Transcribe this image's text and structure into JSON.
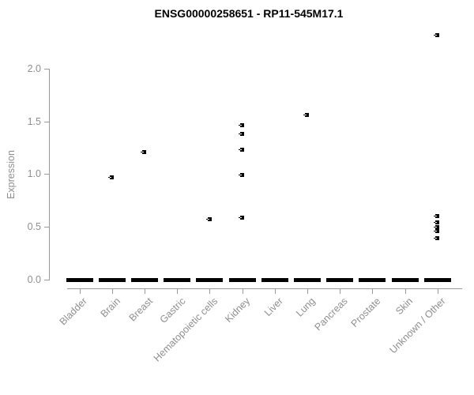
{
  "chart_data": {
    "type": "scatter",
    "title": "ENSG00000258651 - RP11-545M17.1",
    "ylabel": "Expression",
    "xlabel": "",
    "ylim": [
      0.0,
      2.35
    ],
    "yticks": [
      "0.0",
      "0.5",
      "1.0",
      "1.5",
      "2.0"
    ],
    "ytick_values": [
      0.0,
      0.5,
      1.0,
      1.5,
      2.0
    ],
    "grid": false,
    "legend": null,
    "marker": "small-black-square",
    "categories": [
      "Bladder",
      "Brain",
      "Breast",
      "Gastric",
      "Hematopoietic cells",
      "Kidney",
      "Liver",
      "Lung",
      "Pancreas",
      "Prostate",
      "Skin",
      "Unknown / Other"
    ],
    "series": [
      {
        "category": "Bladder",
        "zero_cluster_bar": true,
        "points": []
      },
      {
        "category": "Brain",
        "zero_cluster_bar": true,
        "points": [
          0.97
        ]
      },
      {
        "category": "Breast",
        "zero_cluster_bar": true,
        "points": [
          1.21
        ]
      },
      {
        "category": "Gastric",
        "zero_cluster_bar": true,
        "points": []
      },
      {
        "category": "Hematopoietic cells",
        "zero_cluster_bar": true,
        "points": [
          0.57
        ]
      },
      {
        "category": "Kidney",
        "zero_cluster_bar": true,
        "points": [
          1.46,
          1.38,
          1.23,
          0.99,
          0.59
        ]
      },
      {
        "category": "Liver",
        "zero_cluster_bar": true,
        "points": []
      },
      {
        "category": "Lung",
        "zero_cluster_bar": true,
        "points": [
          1.56
        ]
      },
      {
        "category": "Pancreas",
        "zero_cluster_bar": true,
        "points": []
      },
      {
        "category": "Prostate",
        "zero_cluster_bar": true,
        "points": []
      },
      {
        "category": "Skin",
        "zero_cluster_bar": true,
        "points": []
      },
      {
        "category": "Unknown / Other",
        "zero_cluster_bar": true,
        "points": [
          2.32,
          0.6,
          0.54,
          0.5,
          0.46,
          0.39
        ]
      }
    ],
    "colors": {
      "point": "#000000",
      "zero_bar": "#000000",
      "axis": "#9a9a9a",
      "tick_label": "#8e8e8e",
      "title": "#000000",
      "background": "#ffffff"
    }
  }
}
